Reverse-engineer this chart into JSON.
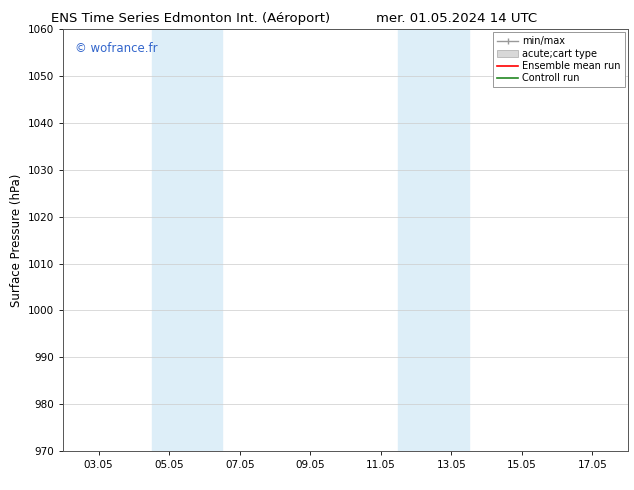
{
  "title_left": "ENS Time Series Edmonton Int. (Aéroport)",
  "title_right": "mer. 01.05.2024 14 UTC",
  "ylabel": "Surface Pressure (hPa)",
  "ylim": [
    970,
    1060
  ],
  "yticks": [
    970,
    980,
    990,
    1000,
    1010,
    1020,
    1030,
    1040,
    1050,
    1060
  ],
  "xlim": [
    0,
    16
  ],
  "xtick_labels": [
    "03.05",
    "05.05",
    "07.05",
    "09.05",
    "11.05",
    "13.05",
    "15.05",
    "17.05"
  ],
  "xtick_positions": [
    1.0,
    3.0,
    5.0,
    7.0,
    9.0,
    11.0,
    13.0,
    15.0
  ],
  "shaded_regions": [
    {
      "xstart": 2.5,
      "xend": 4.5,
      "color": "#ddeef8"
    },
    {
      "xstart": 9.5,
      "xend": 11.5,
      "color": "#ddeef8"
    }
  ],
  "watermark_text": "© wofrance.fr",
  "watermark_color": "#3366cc",
  "legend_labels": [
    "min/max",
    "acute;cart type",
    "Ensemble mean run",
    "Controll run"
  ],
  "legend_colors_line": [
    "#aaaaaa",
    "#cccccc",
    "#ff0000",
    "#228822"
  ],
  "background_color": "#ffffff",
  "plot_bg_color": "#ffffff",
  "grid_color": "#cccccc",
  "title_fontsize": 9.5,
  "tick_fontsize": 7.5,
  "ylabel_fontsize": 8.5,
  "legend_fontsize": 7.0,
  "watermark_fontsize": 8.5
}
